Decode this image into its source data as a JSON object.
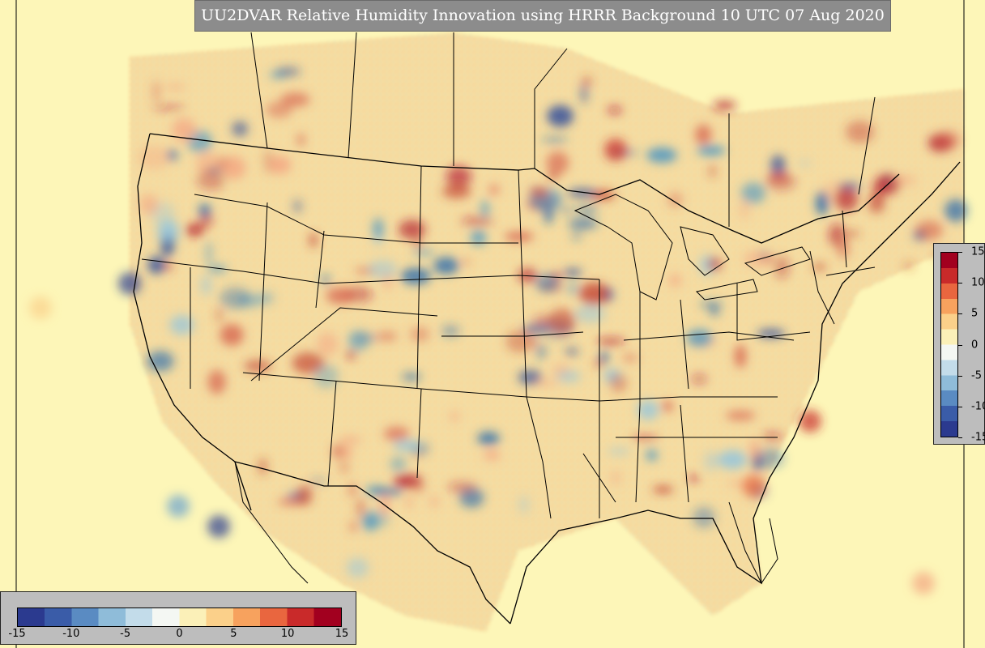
{
  "title": "UU2DVAR Relative Humidity Innovation using HRRR Background 10 UTC 07 Aug 2020",
  "colorbar": {
    "min": -15,
    "max": 15,
    "ticks_right": [
      "15",
      "10",
      "5",
      "0",
      "-5",
      "-10",
      "-15"
    ],
    "ticks_bottom": [
      "-15",
      "-10",
      "-5",
      "0",
      "5",
      "10",
      "15"
    ],
    "colors": [
      "#2b3a8f",
      "#3a5ca8",
      "#5a8bc2",
      "#8fbcd9",
      "#c3dcea",
      "#f4f7f3",
      "#fbf0b8",
      "#fbd08a",
      "#f7a25e",
      "#e9663f",
      "#c92a2a",
      "#a2001f"
    ]
  },
  "map": {
    "background_color": "#fdf6b8",
    "boundary_color": "#000000"
  }
}
